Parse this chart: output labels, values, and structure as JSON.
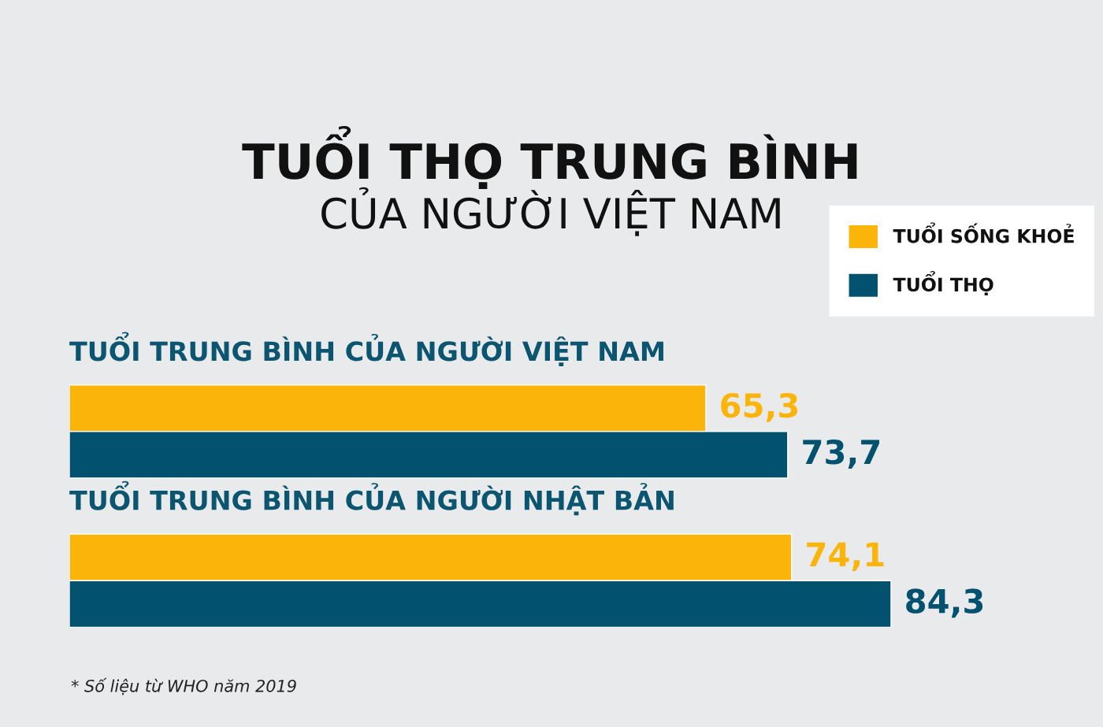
{
  "chart_data": {
    "type": "bar",
    "orientation": "horizontal",
    "title": "TUỔI THỌ TRUNG BÌNH",
    "subtitle": "CỦA NGƯỜI VIỆT NAM",
    "categories": [
      "TUỔI TRUNG BÌNH CỦA NGƯỜI VIỆT NAM",
      "TUỔI TRUNG BÌNH CỦA NGƯỜI NHẬT BẢN"
    ],
    "series": [
      {
        "name": "TUỔI SỐNG KHOẺ",
        "color": "#fbb50a",
        "values": [
          65.3,
          74.1
        ],
        "value_labels": [
          "65,3",
          "74,1"
        ]
      },
      {
        "name": "TUỔI THỌ",
        "color": "#02526f",
        "values": [
          73.7,
          84.3
        ],
        "value_labels": [
          "73,7",
          "84,3"
        ]
      }
    ],
    "legend": "top right",
    "tick_labels": false,
    "annotations": [
      "* Số liệu từ WHO năm 2019"
    ]
  }
}
